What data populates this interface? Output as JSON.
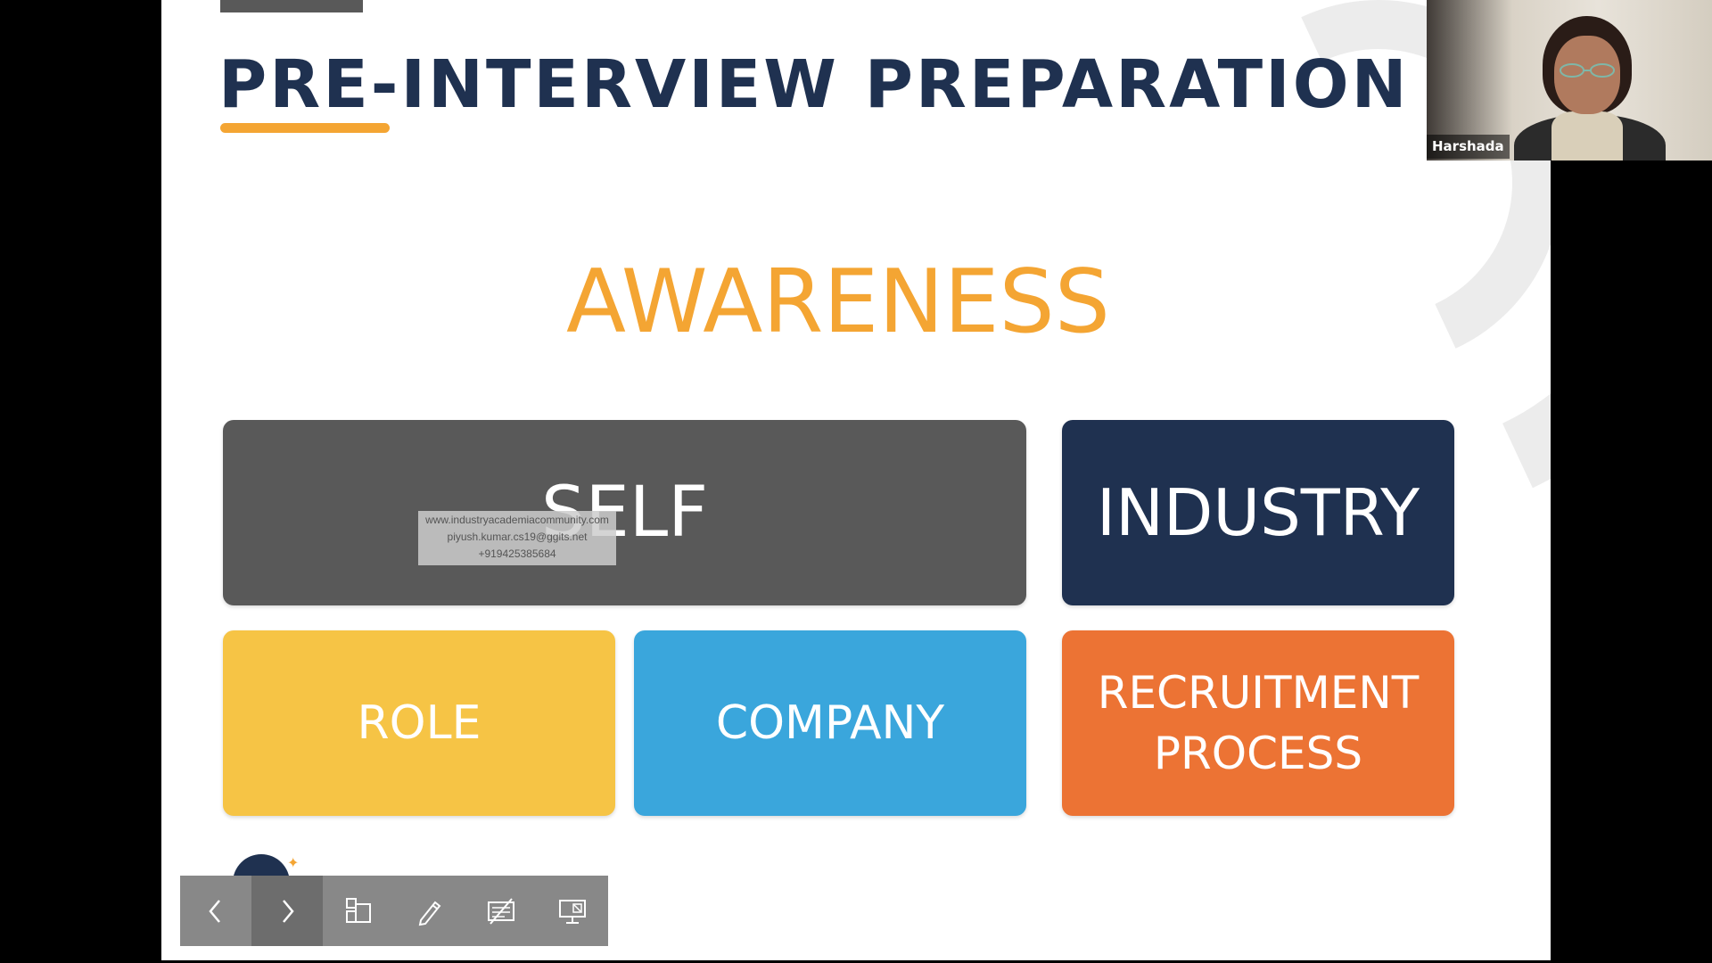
{
  "slide": {
    "title": "PRE-INTERVIEW PREPARATION",
    "subtitle": "AWARENESS",
    "cards": {
      "self": "SELF",
      "industry": "INDUSTRY",
      "role": "ROLE",
      "company": "COMPANY",
      "recruitment": "RECRUITMENT\nPROCESS"
    },
    "colors": {
      "navy": "#1f3150",
      "orange_accent": "#f4a533",
      "gray_card": "#595959",
      "yellow_card": "#f6c445",
      "blue_card": "#3aa6dc",
      "orange_card": "#ec7334"
    }
  },
  "watermark": {
    "line1": "www.industryacademiacommunity.com",
    "line2": "piyush.kumar.cs19@ggits.net",
    "line3": "+919425385684"
  },
  "toolbar": {
    "buttons": [
      {
        "name": "previous-slide",
        "icon": "chevron-left-icon"
      },
      {
        "name": "next-slide",
        "icon": "chevron-right-icon"
      },
      {
        "name": "see-all-slides",
        "icon": "slides-grid-icon"
      },
      {
        "name": "pen-tool",
        "icon": "pen-icon"
      },
      {
        "name": "subtitles",
        "icon": "subtitles-icon"
      },
      {
        "name": "presenter-options",
        "icon": "presentation-icon"
      }
    ]
  },
  "video": {
    "participant_name": "Harshada"
  }
}
